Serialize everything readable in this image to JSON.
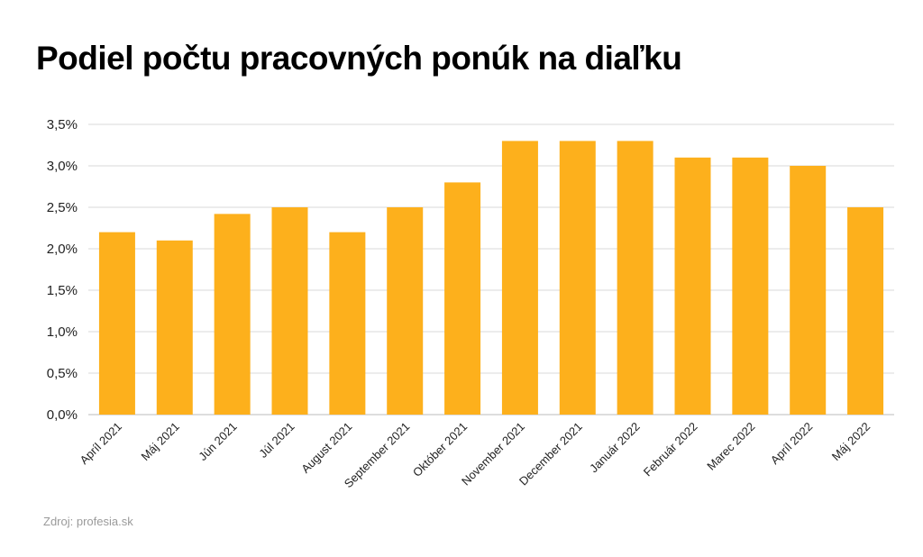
{
  "chart_data": {
    "type": "bar",
    "title": "Podiel počtu pracovných ponúk na diaľku",
    "xlabel": "",
    "ylabel": "",
    "categories": [
      "Apríl 2021",
      "Máj 2021",
      "Jún 2021",
      "Júl 2021",
      "August 2021",
      "September 2021",
      "Október 2021",
      "November 2021",
      "December 2021",
      "Január 2022",
      "Február 2022",
      "Marec 2022",
      "Apríl 2022",
      "Máj 2022"
    ],
    "values": [
      2.2,
      2.1,
      2.42,
      2.5,
      2.2,
      2.5,
      2.8,
      3.3,
      3.3,
      3.3,
      3.1,
      3.1,
      3.0,
      2.5
    ],
    "ylim": [
      0,
      3.5
    ],
    "yticks": [
      "0,0%",
      "0,5%",
      "1,0%",
      "1,5%",
      "2,0%",
      "2,5%",
      "3,0%",
      "3,5%"
    ],
    "grid": true,
    "bar_color": "#FDB01C",
    "grid_color": "#d9d9d9"
  },
  "source": "Zdroj: profesia.sk"
}
